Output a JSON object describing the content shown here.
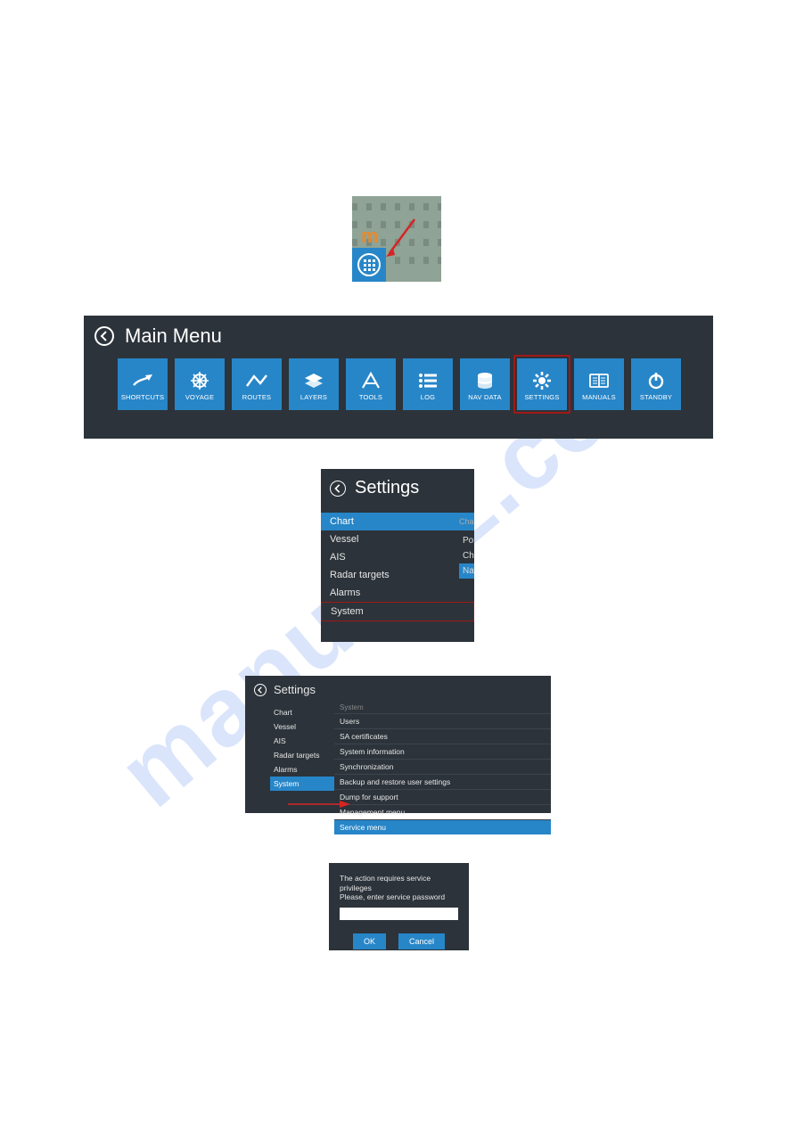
{
  "colors": {
    "panel_bg": "#2c333a",
    "accent": "#2786c8",
    "highlight_border": "#a01818",
    "arrow": "#d62424",
    "map_bg": "#8fa396",
    "m_letter": "#e58a2e",
    "text": "#ffffff",
    "text_dim": "#e6e6e6",
    "divider": "#3d444b",
    "watermark": "#5a8dee"
  },
  "watermark_text": "manualzz.com",
  "thumb1": {
    "letter": "m"
  },
  "mainmenu": {
    "title": "Main Menu",
    "tiles": [
      {
        "name": "shortcuts",
        "label": "SHORTCUTS",
        "icon": "↗"
      },
      {
        "name": "voyage",
        "label": "VOYAGE",
        "icon": "✳"
      },
      {
        "name": "routes",
        "label": "ROUTES",
        "icon": "⌃"
      },
      {
        "name": "layers",
        "label": "LAYERS",
        "icon": "≣"
      },
      {
        "name": "tools",
        "label": "TOOLS",
        "icon": "⩚"
      },
      {
        "name": "log",
        "label": "LOG",
        "icon": "≡"
      },
      {
        "name": "navdata",
        "label": "NAV DATA",
        "icon": "≋"
      },
      {
        "name": "settings",
        "label": "SETTINGS",
        "icon": "⚙",
        "highlighted": true
      },
      {
        "name": "manuals",
        "label": "MANUALS",
        "icon": "▭"
      },
      {
        "name": "standby",
        "label": "STANDBY",
        "icon": "⏻"
      }
    ]
  },
  "settings1": {
    "title": "Settings",
    "items": [
      {
        "label": "Chart",
        "selected": true
      },
      {
        "label": "Vessel",
        "selected": false
      },
      {
        "label": "AIS",
        "selected": false
      },
      {
        "label": "Radar targets",
        "selected": false
      },
      {
        "label": "Alarms",
        "selected": false
      },
      {
        "label": "System",
        "selected": false,
        "boxed": true
      }
    ],
    "right_header": "Cha",
    "right_items": [
      {
        "label": "Portr",
        "selected": false
      },
      {
        "label": "Char",
        "selected": false
      },
      {
        "label": "Navig",
        "selected": true
      }
    ]
  },
  "settings2": {
    "title": "Settings",
    "left": [
      {
        "label": "Chart"
      },
      {
        "label": "Vessel"
      },
      {
        "label": "AIS"
      },
      {
        "label": "Radar targets"
      },
      {
        "label": "Alarms"
      },
      {
        "label": "System",
        "selected": true
      }
    ],
    "right_group": "System",
    "right": [
      {
        "label": "Users"
      },
      {
        "label": "SA certificates"
      },
      {
        "label": "System information"
      },
      {
        "label": "Synchronization"
      },
      {
        "label": "Backup and restore user settings"
      },
      {
        "label": "Dump for support"
      },
      {
        "label": "Management menu"
      },
      {
        "label": "Service menu",
        "selected": true
      }
    ]
  },
  "pwdlg": {
    "line1": "The action requires service privileges",
    "line2": "Please, enter service password",
    "ok": "OK",
    "cancel": "Cancel"
  }
}
